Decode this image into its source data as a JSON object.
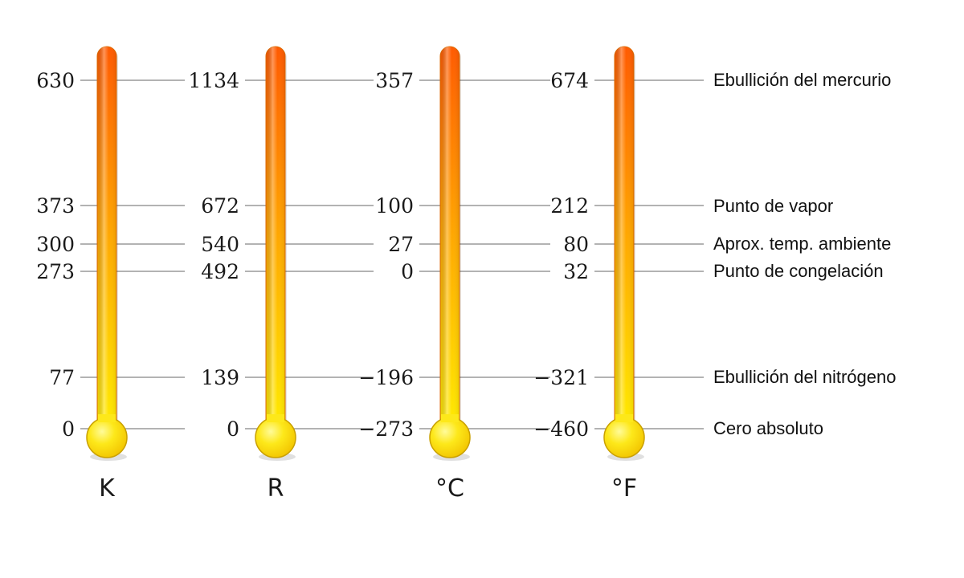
{
  "scales": [
    {
      "unit": "K",
      "values": [
        "630",
        "373",
        "300",
        "273",
        "77",
        "0"
      ]
    },
    {
      "unit": "R",
      "values": [
        "1134",
        "672",
        "540",
        "492",
        "139",
        "0"
      ]
    },
    {
      "unit": "°C",
      "values": [
        "357",
        "100",
        "27",
        "0",
        "−196",
        "−273"
      ]
    },
    {
      "unit": "°F",
      "values": [
        "674",
        "212",
        "80",
        "32",
        "−321",
        "−460"
      ]
    }
  ],
  "reference_points": [
    "Ebullición del mercurio",
    "Punto de vapor",
    "Aprox. temp. ambiente",
    "Punto de congelación",
    "Ebullición del nitrógeno",
    "Cero absoluto"
  ],
  "colors": {
    "gradient_top": "#ff5a00",
    "gradient_mid": "#ffaa00",
    "gradient_bottom": "#ffee00",
    "bulb_fill": "#fde81a",
    "bulb_stroke": "#c9a000",
    "reference_line": "#9a9a9a"
  }
}
